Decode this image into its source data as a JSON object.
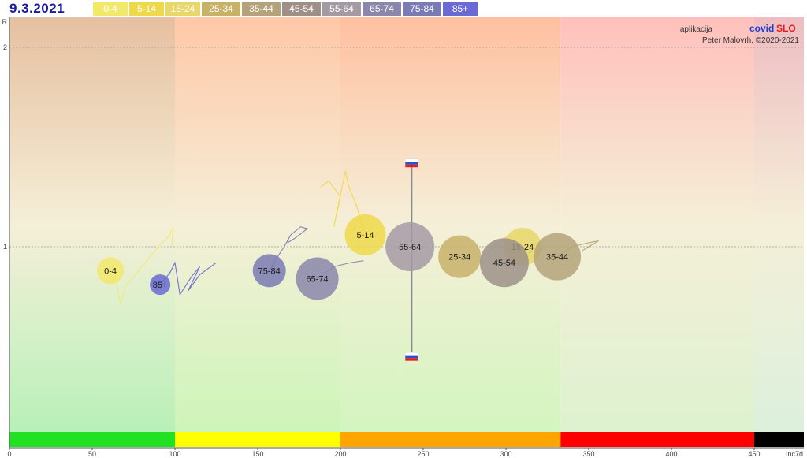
{
  "header": {
    "date": "9.3.2021"
  },
  "credits": {
    "app_prefix": "aplikacija",
    "brand_part1": "covid",
    "brand_part2": "SLO",
    "author": "Peter Malovrh, ©2020-2021"
  },
  "colors": {
    "brand_blue": "#1f3fcf",
    "brand_red": "#e11d1d",
    "date": "#1a1aa0"
  },
  "chart_data": {
    "type": "scatter",
    "xlabel": "Inc7d",
    "ylabel": "R",
    "xlim": [
      0,
      480
    ],
    "ylim": [
      0.1,
      2.2
    ],
    "x_ticks": [
      0,
      50,
      100,
      150,
      200,
      250,
      300,
      350,
      400,
      450
    ],
    "y_ticks": [
      1,
      2
    ],
    "grid": "horizontal dashed at R=1 and R=2",
    "zones": [
      {
        "from": 0,
        "to": 100,
        "color": "#22e022"
      },
      {
        "from": 100,
        "to": 200,
        "color": "#ffff00"
      },
      {
        "from": 200,
        "to": 333,
        "color": "#ffa500"
      },
      {
        "from": 333,
        "to": 450,
        "color": "#ff0000"
      },
      {
        "from": 450,
        "to": 480,
        "color": "#000000"
      }
    ],
    "series": [
      {
        "name": "0-4",
        "color": "#f2e86a",
        "x": 61,
        "r": 0.88,
        "size": 17,
        "trail": [
          [
            61,
            0.88
          ],
          [
            65,
            0.8
          ],
          [
            67,
            0.72
          ],
          [
            70,
            0.8
          ],
          [
            75,
            0.85
          ],
          [
            82,
            0.92
          ],
          [
            90,
            1.0
          ],
          [
            96,
            1.05
          ],
          [
            99,
            1.1
          ],
          [
            98,
            1.0
          ]
        ]
      },
      {
        "name": "5-14",
        "color": "#eed94a",
        "x": 215,
        "r": 1.06,
        "size": 26,
        "trail": [
          [
            215,
            1.06
          ],
          [
            210,
            1.2
          ],
          [
            205,
            1.3
          ],
          [
            203,
            1.38
          ],
          [
            196,
            1.1
          ],
          [
            200,
            1.25
          ],
          [
            193,
            1.33
          ],
          [
            188,
            1.3
          ]
        ]
      },
      {
        "name": "15-24",
        "color": "#e8d76a",
        "x": 310,
        "r": 1.0,
        "size": 24,
        "trail": [
          [
            310,
            1.0
          ],
          [
            300,
            1.05
          ],
          [
            290,
            0.98
          ],
          [
            295,
            1.02
          ],
          [
            305,
            1.05
          ],
          [
            312,
            1.08
          ],
          [
            318,
            1.05
          ]
        ]
      },
      {
        "name": "25-34",
        "color": "#c8b26a",
        "x": 272,
        "r": 0.95,
        "size": 27,
        "trail": []
      },
      {
        "name": "35-44",
        "color": "#b4a37a",
        "x": 331,
        "r": 0.95,
        "size": 30,
        "trail": [
          [
            331,
            0.95
          ],
          [
            340,
            1.0
          ],
          [
            350,
            1.02
          ],
          [
            356,
            1.03
          ],
          [
            346,
            0.98
          ],
          [
            352,
            1.01
          ]
        ]
      },
      {
        "name": "45-54",
        "color": "#9e9088",
        "x": 299,
        "r": 0.92,
        "size": 31,
        "trail": [
          [
            299,
            0.92
          ],
          [
            310,
            0.96
          ],
          [
            322,
            0.99
          ],
          [
            316,
            0.95
          ]
        ]
      },
      {
        "name": "55-64",
        "color": "#a49aa4",
        "x": 242,
        "r": 1.0,
        "size": 31,
        "trail": []
      },
      {
        "name": "65-74",
        "color": "#8a86ac",
        "x": 186,
        "r": 0.84,
        "size": 27,
        "trail": [
          [
            186,
            0.84
          ],
          [
            196,
            0.9
          ],
          [
            206,
            0.92
          ],
          [
            214,
            0.93
          ]
        ]
      },
      {
        "name": "75-84",
        "color": "#7a7ab4",
        "x": 157,
        "r": 0.88,
        "size": 21,
        "trail": [
          [
            157,
            0.88
          ],
          [
            162,
            0.95
          ],
          [
            166,
            1.0
          ],
          [
            170,
            1.06
          ],
          [
            176,
            1.1
          ],
          [
            180,
            1.09
          ],
          [
            172,
            1.04
          ],
          [
            168,
            1.02
          ]
        ]
      },
      {
        "name": "85+",
        "color": "#6a6ad4",
        "x": 91,
        "r": 0.81,
        "size": 13,
        "trail": [
          [
            91,
            0.81
          ],
          [
            97,
            0.87
          ],
          [
            100,
            0.92
          ],
          [
            103,
            0.76
          ],
          [
            110,
            0.85
          ],
          [
            115,
            0.9
          ],
          [
            108,
            0.78
          ],
          [
            115,
            0.86
          ],
          [
            125,
            0.92
          ]
        ]
      }
    ],
    "slovenia_marker": {
      "x": 243,
      "r_top": 1.42,
      "r_bottom": 0.45
    }
  }
}
